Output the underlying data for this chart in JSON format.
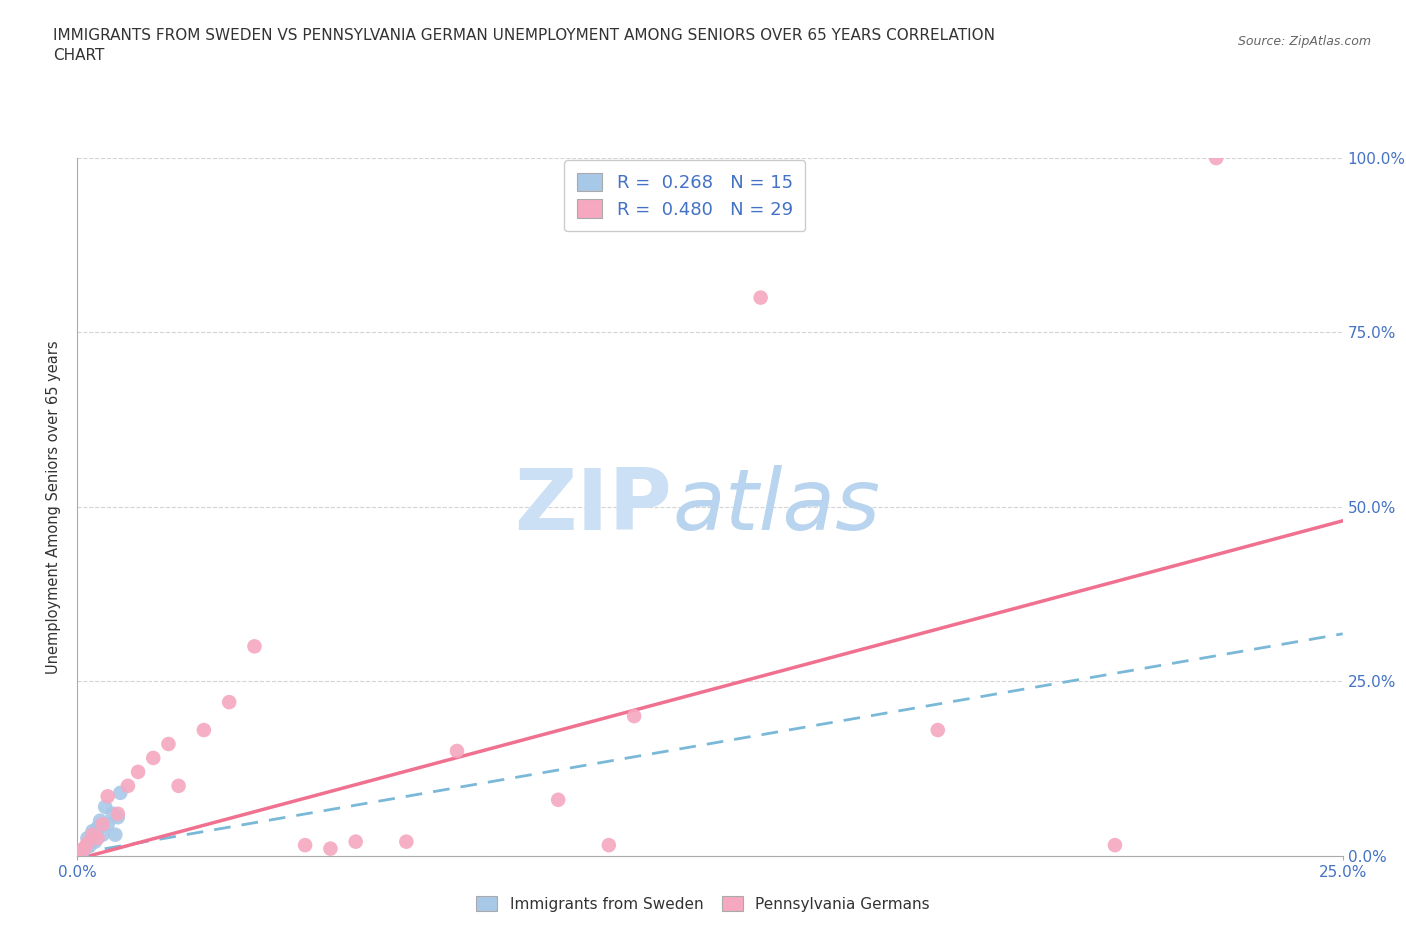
{
  "title_line1": "IMMIGRANTS FROM SWEDEN VS PENNSYLVANIA GERMAN UNEMPLOYMENT AMONG SENIORS OVER 65 YEARS CORRELATION",
  "title_line2": "CHART",
  "source": "Source: ZipAtlas.com",
  "ylabel": "Unemployment Among Seniors over 65 years",
  "ytick_values": [
    0.0,
    25.0,
    50.0,
    75.0,
    100.0
  ],
  "xlim": [
    0.0,
    25.0
  ],
  "ylim": [
    0.0,
    100.0
  ],
  "sweden_R": 0.268,
  "sweden_N": 15,
  "penn_R": 0.48,
  "penn_N": 29,
  "sweden_color": "#a8c8e8",
  "penn_color": "#f5a8c0",
  "sweden_line_color": "#7ab8d8",
  "penn_line_color": "#f07090",
  "background_color": "#ffffff",
  "grid_color": "#d0d0d0",
  "tick_color": "#4472c4",
  "label_color": "#333333",
  "legend_sweden_label": "Immigrants from Sweden",
  "legend_penn_label": "Pennsylvania Germans",
  "sweden_x": [
    0.1,
    0.15,
    0.2,
    0.25,
    0.3,
    0.35,
    0.4,
    0.45,
    0.5,
    0.55,
    0.6,
    0.7,
    0.75,
    0.8,
    0.85
  ],
  "sweden_y": [
    0.5,
    1.0,
    2.5,
    1.5,
    3.5,
    2.0,
    4.0,
    5.0,
    3.0,
    7.0,
    4.5,
    6.0,
    3.0,
    5.5,
    9.0
  ],
  "penn_x": [
    0.05,
    0.1,
    0.15,
    0.2,
    0.3,
    0.4,
    0.5,
    0.6,
    0.8,
    1.0,
    1.2,
    1.5,
    1.8,
    2.0,
    2.5,
    3.0,
    3.5,
    4.5,
    5.0,
    5.5,
    6.5,
    7.5,
    9.5,
    10.5,
    11.0,
    13.5,
    17.0,
    20.5,
    22.5
  ],
  "penn_y": [
    0.3,
    0.8,
    1.2,
    1.8,
    3.0,
    2.5,
    4.5,
    8.5,
    6.0,
    10.0,
    12.0,
    14.0,
    16.0,
    10.0,
    18.0,
    22.0,
    30.0,
    1.5,
    1.0,
    2.0,
    2.0,
    15.0,
    8.0,
    1.5,
    20.0,
    80.0,
    18.0,
    1.5,
    100.0
  ],
  "sweden_line_x": [
    0.0,
    25.0
  ],
  "sweden_line_y_intercept": 1.5,
  "sweden_line_slope": 1.08,
  "penn_line_x": [
    0.0,
    25.0
  ],
  "penn_line_y_intercept": 0.5,
  "penn_line_slope": 1.96
}
